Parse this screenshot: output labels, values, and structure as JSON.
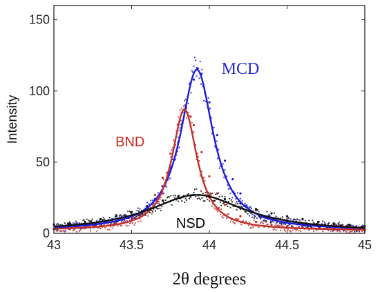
{
  "chart_data": {
    "type": "scatter",
    "xlabel": "2θ degrees",
    "ylabel": "Intensity",
    "xlim": [
      43,
      45
    ],
    "ylim": [
      0,
      160
    ],
    "x_ticks": [
      43,
      43.5,
      44,
      44.5,
      45
    ],
    "x_tick_labels": [
      "43",
      "43.5",
      "44",
      "44.5",
      "45"
    ],
    "y_ticks": [
      0,
      50,
      100,
      150
    ],
    "y_tick_labels": [
      "0",
      "50",
      "100",
      "150"
    ],
    "grid": false,
    "legend": "none",
    "series": [
      {
        "name": "MCD",
        "color": "#1a1adc",
        "label_color": "#2a2acc",
        "fit": {
          "model": "lorentzian",
          "center": 43.92,
          "hwhm": 0.13,
          "peak": 115,
          "baseline": 2
        },
        "points": [
          [
            43.0,
            3
          ],
          [
            43.1,
            3
          ],
          [
            43.2,
            4
          ],
          [
            43.3,
            5
          ],
          [
            43.4,
            7
          ],
          [
            43.5,
            10
          ],
          [
            43.55,
            13
          ],
          [
            43.6,
            17
          ],
          [
            43.65,
            24
          ],
          [
            43.7,
            33
          ],
          [
            43.75,
            46
          ],
          [
            43.8,
            64
          ],
          [
            43.85,
            88
          ],
          [
            43.9,
            108
          ],
          [
            43.92,
            116
          ],
          [
            43.95,
            112
          ],
          [
            44.0,
            92
          ],
          [
            44.05,
            69
          ],
          [
            44.1,
            51
          ],
          [
            44.15,
            38
          ],
          [
            44.2,
            28
          ],
          [
            44.3,
            17
          ],
          [
            44.4,
            11
          ],
          [
            44.5,
            8
          ],
          [
            44.6,
            6
          ],
          [
            44.7,
            5
          ],
          [
            44.8,
            4
          ],
          [
            44.9,
            3
          ],
          [
            45.0,
            3
          ]
        ]
      },
      {
        "name": "BND",
        "color": "#c0312a",
        "label_color": "#d02418",
        "fit": {
          "model": "lorentzian",
          "center": 43.84,
          "hwhm": 0.1,
          "peak": 87,
          "baseline": 2
        },
        "points": [
          [
            43.0,
            3
          ],
          [
            43.1,
            3
          ],
          [
            43.2,
            4
          ],
          [
            43.3,
            5
          ],
          [
            43.4,
            7
          ],
          [
            43.5,
            11
          ],
          [
            43.55,
            14
          ],
          [
            43.6,
            19
          ],
          [
            43.65,
            27
          ],
          [
            43.7,
            39
          ],
          [
            43.75,
            56
          ],
          [
            43.8,
            76
          ],
          [
            43.84,
            87
          ],
          [
            43.88,
            82
          ],
          [
            43.9,
            76
          ],
          [
            43.95,
            57
          ],
          [
            44.0,
            40
          ],
          [
            44.05,
            28
          ],
          [
            44.1,
            20
          ],
          [
            44.2,
            12
          ],
          [
            44.3,
            8
          ],
          [
            44.4,
            6
          ],
          [
            44.5,
            5
          ],
          [
            44.6,
            4
          ],
          [
            44.7,
            3
          ],
          [
            44.8,
            3
          ],
          [
            45.0,
            2
          ]
        ]
      },
      {
        "name": "NSD",
        "color": "#111111",
        "label_color": "#000000",
        "fit": {
          "model": "lorentzian",
          "center": 43.92,
          "hwhm": 0.38,
          "peak": 27,
          "baseline": 1
        },
        "points": [
          [
            43.0,
            6
          ],
          [
            43.1,
            7
          ],
          [
            43.2,
            8
          ],
          [
            43.3,
            10
          ],
          [
            43.4,
            12
          ],
          [
            43.5,
            15
          ],
          [
            43.6,
            19
          ],
          [
            43.7,
            23
          ],
          [
            43.8,
            26
          ],
          [
            43.9,
            27
          ],
          [
            44.0,
            26
          ],
          [
            44.1,
            24
          ],
          [
            44.2,
            21
          ],
          [
            44.3,
            17
          ],
          [
            44.4,
            14
          ],
          [
            44.5,
            12
          ],
          [
            44.6,
            10
          ],
          [
            44.7,
            8
          ],
          [
            44.8,
            7
          ],
          [
            44.9,
            6
          ],
          [
            45.0,
            5
          ]
        ]
      }
    ],
    "annotations": [
      {
        "text": "MCD",
        "series": "MCD",
        "x": 44.2,
        "y": 112,
        "font": "serif"
      },
      {
        "text": "BND",
        "series": "BND",
        "x": 43.49,
        "y": 61,
        "font": "sans"
      },
      {
        "text": "NSD",
        "series": "NSD",
        "x": 43.88,
        "y": 4,
        "font": "sans"
      }
    ]
  }
}
